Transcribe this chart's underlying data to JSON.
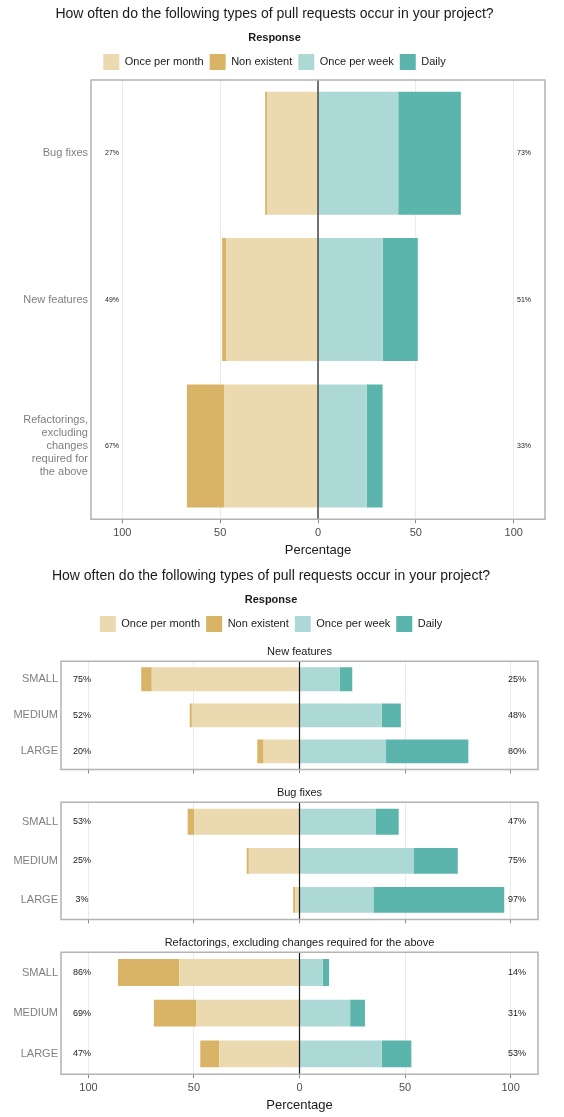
{
  "chart_data": [
    {
      "type": "bar",
      "orientation": "horizontal",
      "stacked": true,
      "title": "How often do the following types of pull requests occur in your project?",
      "legend_title": "Response",
      "legend": "top",
      "xlabel": "Percentage",
      "categories": [
        "Bug fixes",
        "New features",
        "Refactorings, excluding changes required for the above"
      ],
      "series": [
        {
          "name": "Once per month",
          "color": "#ebd9b0",
          "values": [
            -26,
            -47,
            -48
          ]
        },
        {
          "name": "Non existent",
          "color": "#d9b466",
          "values": [
            -1,
            -2,
            -19
          ]
        },
        {
          "name": "Once per week",
          "color": "#acd9d6",
          "values": [
            41,
            33,
            25
          ]
        },
        {
          "name": "Daily",
          "color": "#5bb5ad",
          "values": [
            32,
            18,
            8
          ]
        }
      ],
      "xlim": [
        -116,
        116
      ],
      "xticks": [
        {
          "value": -100,
          "label": "100"
        },
        {
          "value": -50,
          "label": "50"
        },
        {
          "value": 0,
          "label": "0"
        },
        50,
        {
          "value": 100,
          "label": "100"
        }
      ],
      "grid": "x",
      "ref_lines": [
        {
          "axis": "x",
          "value": 0,
          "color": "#1a1a1a"
        }
      ],
      "annotations": [
        "27%",
        "73%",
        "49%",
        "51%",
        "67%",
        "33%"
      ]
    },
    {
      "type": "bar",
      "orientation": "horizontal",
      "stacked": true,
      "title": "How often do the following types of pull requests occur in your project?",
      "subtitle": "New features",
      "legend_title": "Response",
      "legend": "top",
      "categories": [
        "SMALL",
        "MEDIUM",
        "LARGE"
      ],
      "series": [
        {
          "name": "Once per month",
          "color": "#ebd9b0",
          "values": [
            -70,
            -51,
            -17
          ]
        },
        {
          "name": "Non existent",
          "color": "#d9b466",
          "values": [
            -5,
            -1,
            -3
          ]
        },
        {
          "name": "Once per week",
          "color": "#acd9d6",
          "values": [
            19,
            39,
            41
          ]
        },
        {
          "name": "Daily",
          "color": "#5bb5ad",
          "values": [
            6,
            9,
            39
          ]
        }
      ],
      "xlim": [
        -113,
        113
      ],
      "xticks": [
        {
          "value": -100,
          "label": null
        },
        {
          "value": -50,
          "label": null
        },
        {
          "value": 0,
          "label": null
        },
        {
          "value": 50,
          "label": null
        },
        {
          "value": 100,
          "label": null
        }
      ],
      "grid": "x",
      "tick_labels": "y",
      "ref_lines": [
        {
          "axis": "x",
          "value": 0,
          "color": "#1a1a1a"
        }
      ],
      "annotations": [
        "75%",
        "25%",
        "52%",
        "48%",
        "20%",
        "80%"
      ]
    },
    {
      "type": "bar",
      "orientation": "horizontal",
      "stacked": true,
      "subtitle": "Bug fixes",
      "categories": [
        "SMALL",
        "MEDIUM",
        "LARGE"
      ],
      "series": [
        {
          "color": "#ebd9b0",
          "values": [
            -50,
            -24,
            -2
          ]
        },
        {
          "color": "#d9b466",
          "values": [
            -3,
            -1,
            -1
          ]
        },
        {
          "color": "#acd9d6",
          "values": [
            36,
            54,
            35
          ]
        },
        {
          "color": "#5bb5ad",
          "values": [
            11,
            21,
            62
          ]
        }
      ],
      "xlim": [
        -113,
        113
      ],
      "xticks": [
        {
          "value": -100,
          "label": null
        },
        {
          "value": -50,
          "label": null
        },
        {
          "value": 0,
          "label": null
        },
        {
          "value": 50,
          "label": null
        },
        {
          "value": 100,
          "label": null
        }
      ],
      "grid": "x",
      "tick_labels": "y",
      "ref_lines": [
        {
          "axis": "x",
          "value": 0,
          "color": "#1a1a1a"
        }
      ],
      "annotations": [
        "53%",
        "47%",
        "25%",
        "75%",
        "3%",
        "97%"
      ]
    },
    {
      "type": "bar",
      "orientation": "horizontal",
      "stacked": true,
      "subtitle": "Refactorings, excluding changes required for the above",
      "xlabel": "Percentage",
      "categories": [
        "SMALL",
        "MEDIUM",
        "LARGE"
      ],
      "series": [
        {
          "color": "#ebd9b0",
          "values": [
            -57,
            -49,
            -38
          ]
        },
        {
          "color": "#d9b466",
          "values": [
            -29,
            -20,
            -9
          ]
        },
        {
          "color": "#acd9d6",
          "values": [
            11,
            24,
            39
          ]
        },
        {
          "color": "#5bb5ad",
          "values": [
            3,
            7,
            14
          ]
        }
      ],
      "xlim": [
        -113,
        113
      ],
      "xticks": [
        {
          "value": -100,
          "label": "100"
        },
        {
          "value": -50,
          "label": "50"
        },
        {
          "value": 0,
          "label": "0"
        },
        50,
        {
          "value": 100,
          "label": "100"
        }
      ],
      "grid": "x",
      "ref_lines": [
        {
          "axis": "x",
          "value": 0,
          "color": "#1a1a1a"
        }
      ],
      "annotations": [
        "86%",
        "14%",
        "69%",
        "31%",
        "47%",
        "53%"
      ]
    }
  ]
}
